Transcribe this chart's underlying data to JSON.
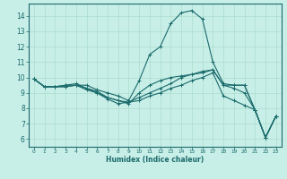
{
  "xlabel": "Humidex (Indice chaleur)",
  "xlim": [
    -0.5,
    23.5
  ],
  "ylim": [
    5.5,
    14.8
  ],
  "yticks": [
    6,
    7,
    8,
    9,
    10,
    11,
    12,
    13,
    14
  ],
  "xticks": [
    0,
    1,
    2,
    3,
    4,
    5,
    6,
    7,
    8,
    9,
    10,
    11,
    12,
    13,
    14,
    15,
    16,
    17,
    18,
    19,
    20,
    21,
    22,
    23
  ],
  "bg_color": "#c8eee8",
  "line_color": "#1a6b6b",
  "grid_color": "#aaddcc",
  "series": [
    [
      9.9,
      9.4,
      9.4,
      9.4,
      9.5,
      9.5,
      9.2,
      9.0,
      8.8,
      8.5,
      9.8,
      11.5,
      12.0,
      13.5,
      14.2,
      14.35,
      13.8,
      11.0,
      9.6,
      9.5,
      9.5,
      7.9,
      6.1,
      7.5
    ],
    [
      9.9,
      9.4,
      9.4,
      9.4,
      9.5,
      9.2,
      9.0,
      8.7,
      8.5,
      8.3,
      9.0,
      9.5,
      9.8,
      10.0,
      10.1,
      10.2,
      10.4,
      10.5,
      9.5,
      9.5,
      9.5,
      7.9,
      6.1,
      7.5
    ],
    [
      9.9,
      9.4,
      9.4,
      9.5,
      9.5,
      9.3,
      9.0,
      8.6,
      8.3,
      8.4,
      8.7,
      9.0,
      9.3,
      9.6,
      10.0,
      10.2,
      10.3,
      10.5,
      9.5,
      9.3,
      9.0,
      7.9,
      6.1,
      7.5
    ],
    [
      9.9,
      9.4,
      9.4,
      9.5,
      9.6,
      9.3,
      9.1,
      8.7,
      8.5,
      8.4,
      8.5,
      8.8,
      9.0,
      9.3,
      9.5,
      9.8,
      10.0,
      10.3,
      8.8,
      8.5,
      8.2,
      7.9,
      6.1,
      7.5
    ]
  ]
}
